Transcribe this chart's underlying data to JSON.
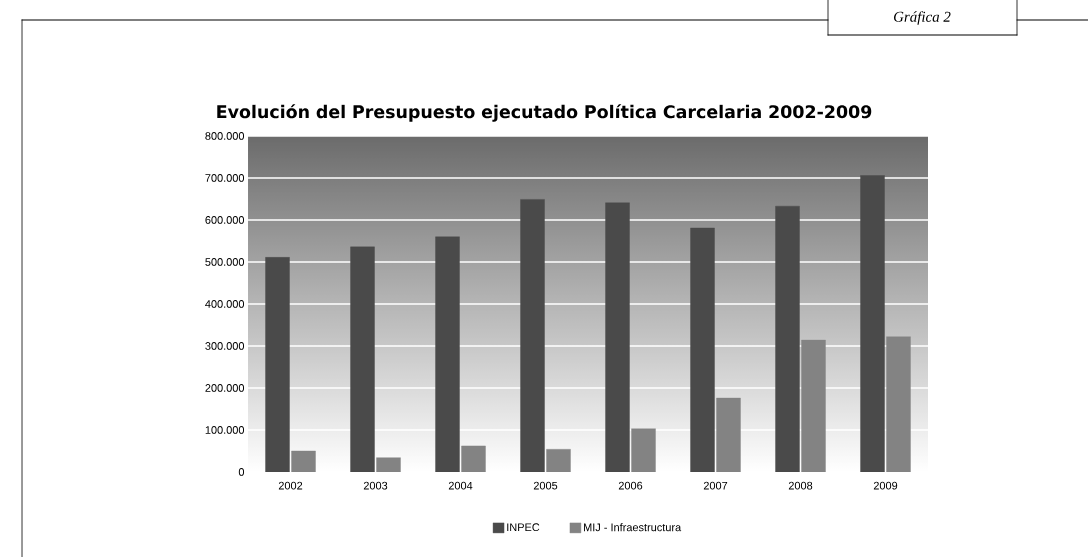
{
  "chart_data": {
    "type": "bar",
    "title": "Evolución del Presupuesto ejecutado Política Carcelaria 2002-2009",
    "annotations": [
      "Gráfica 2"
    ],
    "categories": [
      "2002",
      "2003",
      "2004",
      "2005",
      "2006",
      "2007",
      "2008",
      "2009"
    ],
    "series": [
      {
        "name": "INPEC",
        "color": "#4a4a4a",
        "values": [
          511000,
          536000,
          560000,
          649000,
          641000,
          581000,
          633000,
          706000
        ]
      },
      {
        "name": "MIJ - Infraestructura",
        "color": "#838383",
        "values": [
          50000,
          34000,
          62000,
          54000,
          103000,
          176000,
          314000,
          322000
        ]
      }
    ],
    "ylim": [
      0,
      800000
    ],
    "yticks": [
      {
        "value": 0,
        "label": "0"
      },
      {
        "value": 100000,
        "label": "100.000"
      },
      {
        "value": 200000,
        "label": "200.000"
      },
      {
        "value": 300000,
        "label": "300.000"
      },
      {
        "value": 400000,
        "label": "400.000"
      },
      {
        "value": 500000,
        "label": "500.000"
      },
      {
        "value": 600000,
        "label": "600.000"
      },
      {
        "value": 700000,
        "label": "700.000"
      },
      {
        "value": 800000,
        "label": "800.000"
      }
    ],
    "grid": "y",
    "legend": "bottom"
  }
}
